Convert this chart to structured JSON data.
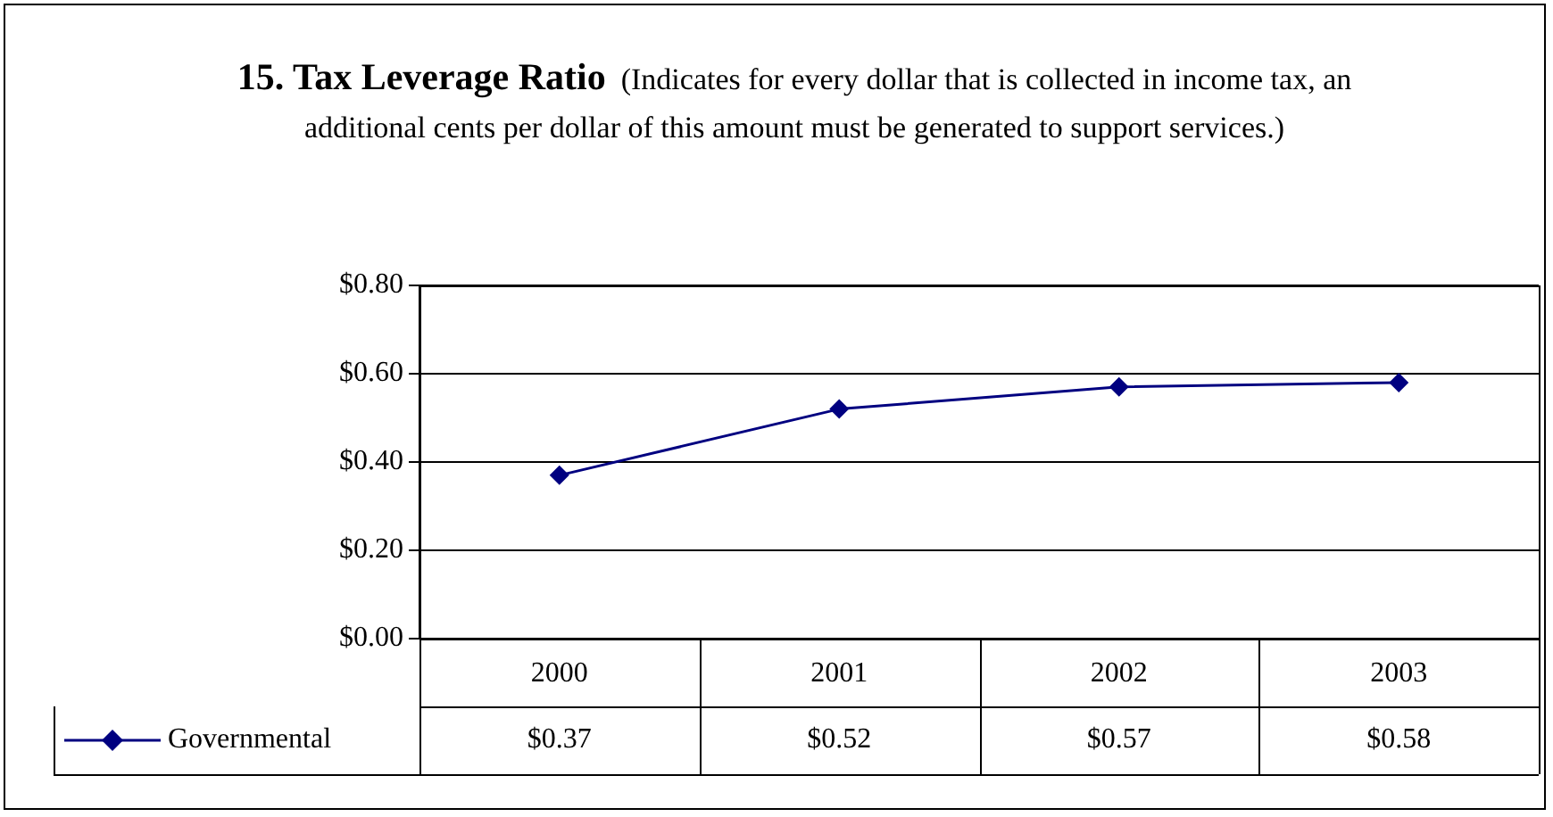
{
  "chart_data": {
    "type": "line",
    "title": "15. Tax Leverage Ratio",
    "subtitle": "(Indicates for every dollar that is collected in income tax, an additional cents per dollar of this amount must be generated to support services.)",
    "categories": [
      "2000",
      "2001",
      "2002",
      "2003"
    ],
    "series": [
      {
        "name": "Governmental",
        "color": "#000080",
        "values": [
          0.37,
          0.52,
          0.57,
          0.58
        ],
        "value_labels": [
          "$0.37",
          "$0.52",
          "$0.57",
          "$0.58"
        ]
      }
    ],
    "ylim": [
      0,
      0.8
    ],
    "yticks": [
      {
        "value": 0,
        "label": "$0.00"
      },
      {
        "value": 0.2,
        "label": "$0.20"
      },
      {
        "value": 0.4,
        "label": "$0.40"
      },
      {
        "value": 0.6,
        "label": "$0.60"
      },
      {
        "value": 0.8,
        "label": "$0.80"
      }
    ],
    "grid": "y",
    "legend": "bottom",
    "marker": "diamond",
    "line_style": "solid"
  }
}
